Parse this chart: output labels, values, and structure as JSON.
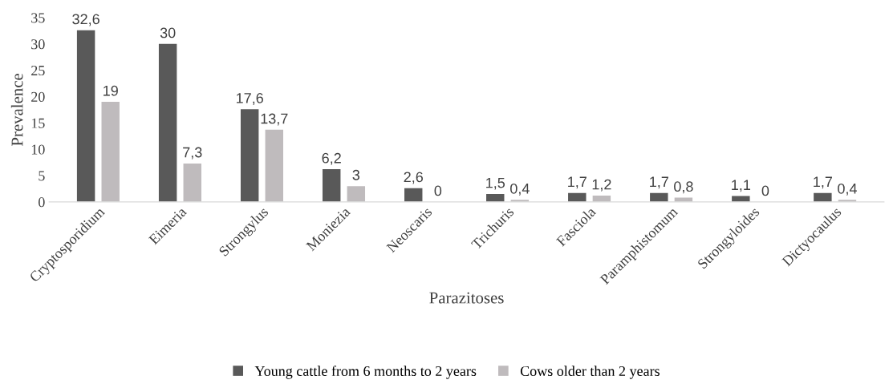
{
  "chart_data": {
    "type": "bar",
    "xlabel": "Parazitoses",
    "ylabel": "Prevalence",
    "categories": [
      "Cryptosporidium",
      "Eimeria",
      "Strongylus",
      "Moniezia",
      "Neoscaris",
      "Trichuris",
      "Fasciola",
      "Paramphistomum",
      "Strongyloides",
      "Dictyocaulus"
    ],
    "series": [
      {
        "name": "Young cattle from 6 months to 2 years",
        "color": "#595959",
        "values": [
          32.6,
          30,
          17.6,
          6.2,
          2.6,
          1.5,
          1.7,
          1.7,
          1.1,
          1.7
        ],
        "value_labels": [
          "32,6",
          "30",
          "17,6",
          "6,2",
          "2,6",
          "1,5",
          "1,7",
          "1,7",
          "1,1",
          "1,7"
        ]
      },
      {
        "name": "Cows older than 2 years",
        "color": "#bfbbbd",
        "values": [
          19,
          7.3,
          13.7,
          3,
          0,
          0.4,
          1.2,
          0.8,
          0,
          0.4
        ],
        "value_labels": [
          "19",
          "7,3",
          "13,7",
          "3",
          "0",
          "0,4",
          "1,2",
          "0,8",
          "0",
          "0,4"
        ]
      }
    ],
    "ylim": [
      0,
      35
    ],
    "yticks": [
      0,
      5,
      10,
      15,
      20,
      25,
      30,
      35
    ],
    "grid": false,
    "legend": "bottom"
  }
}
